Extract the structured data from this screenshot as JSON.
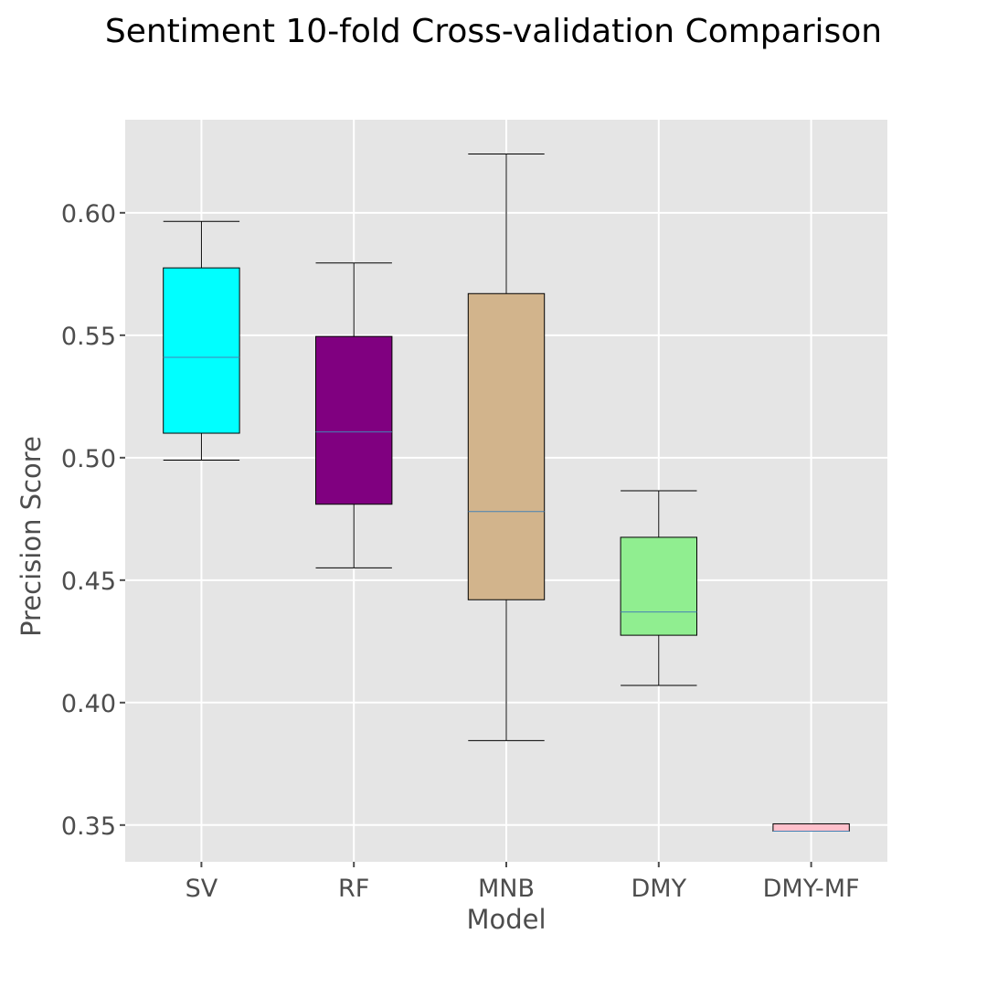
{
  "chart_data": {
    "type": "boxplot",
    "title": "Sentiment 10-fold Cross-validation Comparison",
    "xlabel": "Model",
    "ylabel": "Precision Score",
    "ylim": [
      0.335,
      0.638
    ],
    "yticks": [
      0.35,
      0.4,
      0.45,
      0.5,
      0.55,
      0.6
    ],
    "ytick_labels": [
      "0.35",
      "0.40",
      "0.45",
      "0.50",
      "0.55",
      "0.60"
    ],
    "grid": true,
    "categories": [
      "SV",
      "RF",
      "MNB",
      "DMY",
      "DMY-MF"
    ],
    "boxes": [
      {
        "category": "SV",
        "whisker_low": 0.499,
        "q1": 0.51,
        "median": 0.541,
        "q3": 0.5775,
        "whisker_high": 0.5965,
        "color": "#00ffff"
      },
      {
        "category": "RF",
        "whisker_low": 0.455,
        "q1": 0.481,
        "median": 0.5105,
        "q3": 0.5495,
        "whisker_high": 0.5795,
        "color": "#800080"
      },
      {
        "category": "MNB",
        "whisker_low": 0.3845,
        "q1": 0.442,
        "median": 0.478,
        "q3": 0.567,
        "whisker_high": 0.624,
        "color": "#d2b48c"
      },
      {
        "category": "DMY",
        "whisker_low": 0.407,
        "q1": 0.4275,
        "median": 0.437,
        "q3": 0.4675,
        "whisker_high": 0.4865,
        "color": "#90ee90"
      },
      {
        "category": "DMY-MF",
        "whisker_low": 0.3475,
        "q1": 0.3475,
        "median": 0.3475,
        "q3": 0.3505,
        "whisker_high": 0.3505,
        "color": "#ffc0cb"
      }
    ],
    "colors": {
      "panel_background": "#e5e5e5",
      "grid": "#ffffff",
      "median_line": "#4682b4",
      "outline": "#000000"
    }
  }
}
